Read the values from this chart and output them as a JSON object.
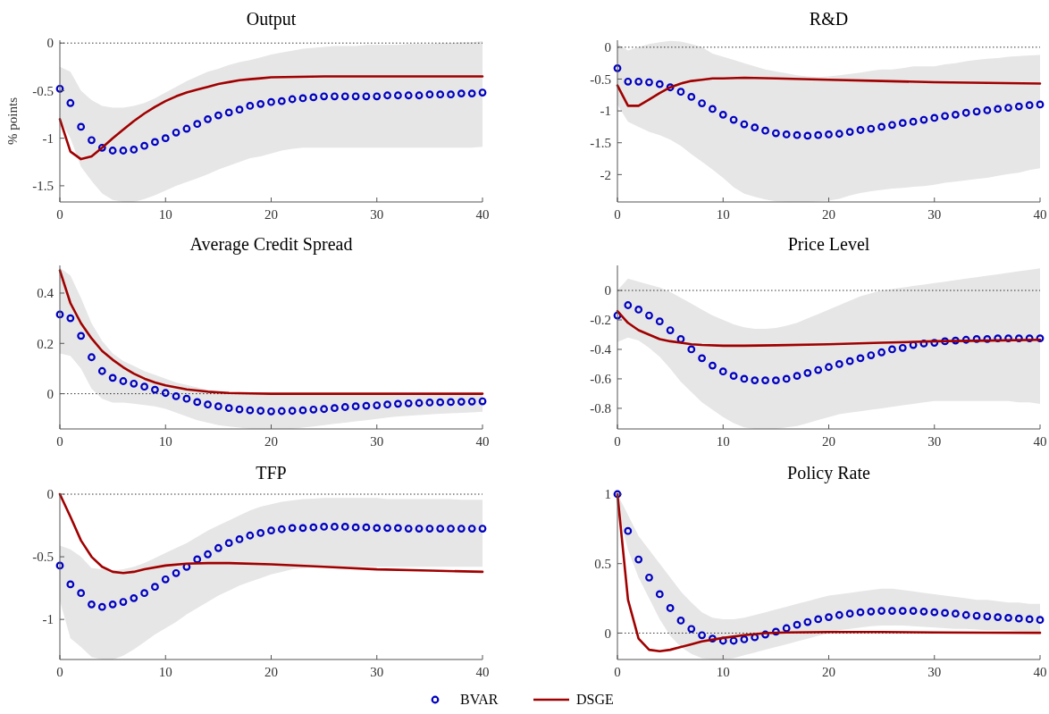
{
  "chart_data": [
    {
      "type": "line",
      "title": "Output",
      "ylabel": "% points",
      "legend": "bottom",
      "x": [
        0,
        1,
        2,
        3,
        4,
        5,
        6,
        7,
        8,
        9,
        10,
        11,
        12,
        13,
        14,
        15,
        16,
        17,
        18,
        19,
        20,
        21,
        22,
        23,
        24,
        25,
        26,
        27,
        28,
        29,
        30,
        31,
        32,
        33,
        34,
        35,
        36,
        37,
        38,
        39,
        40
      ],
      "xlim": [
        0,
        40
      ],
      "xticks": [
        0,
        10,
        20,
        30,
        40
      ],
      "ylim": [
        -1.67,
        0.03
      ],
      "yticks": [
        -1.5,
        -1,
        -0.5,
        0
      ],
      "grid": false,
      "ref_lines": [
        {
          "axis": "y",
          "value": 0,
          "color": "#000000",
          "line_style": "dotted"
        }
      ],
      "series": [
        {
          "name": "BVAR",
          "type": "scatter",
          "marker": "circle",
          "color": "#0000c0",
          "values": [
            -0.48,
            -0.63,
            -0.88,
            -1.02,
            -1.1,
            -1.13,
            -1.13,
            -1.12,
            -1.08,
            -1.04,
            -1,
            -0.94,
            -0.9,
            -0.85,
            -0.8,
            -0.76,
            -0.73,
            -0.7,
            -0.66,
            -0.64,
            -0.62,
            -0.61,
            -0.59,
            -0.58,
            -0.57,
            -0.56,
            -0.56,
            -0.56,
            -0.56,
            -0.56,
            -0.56,
            -0.55,
            -0.55,
            -0.55,
            -0.55,
            -0.54,
            -0.54,
            -0.54,
            -0.53,
            -0.53,
            -0.52
          ],
          "lower": [
            -0.8,
            -1,
            -1.3,
            -1.45,
            -1.58,
            -1.65,
            -1.67,
            -1.67,
            -1.64,
            -1.6,
            -1.55,
            -1.5,
            -1.46,
            -1.42,
            -1.38,
            -1.33,
            -1.29,
            -1.25,
            -1.21,
            -1.19,
            -1.16,
            -1.13,
            -1.11,
            -1.1,
            -1.1,
            -1.1,
            -1.1,
            -1.1,
            -1.1,
            -1.1,
            -1.1,
            -1.1,
            -1.1,
            -1.1,
            -1.1,
            -1.1,
            -1.1,
            -1.1,
            -1.1,
            -1.1,
            -1.09
          ],
          "upper": [
            -0.25,
            -0.3,
            -0.5,
            -0.6,
            -0.66,
            -0.68,
            -0.68,
            -0.66,
            -0.63,
            -0.58,
            -0.52,
            -0.46,
            -0.4,
            -0.35,
            -0.3,
            -0.27,
            -0.23,
            -0.2,
            -0.18,
            -0.15,
            -0.12,
            -0.1,
            -0.08,
            -0.06,
            -0.05,
            -0.04,
            -0.03,
            -0.03,
            -0.03,
            -0.02,
            -0.02,
            -0.02,
            -0.02,
            -0.01,
            -0.01,
            -0.01,
            0,
            0,
            0.01,
            0.01,
            0.02
          ]
        },
        {
          "name": "DSGE",
          "type": "line",
          "marker": "none",
          "line_style": "solid",
          "color": "#a00000",
          "x": [
            0,
            1,
            2,
            3,
            4,
            5,
            6,
            7,
            8,
            9,
            10,
            11,
            12,
            13,
            14,
            15,
            16,
            17,
            18,
            19,
            20,
            25,
            30,
            35,
            40
          ],
          "values": [
            -0.8,
            -1.14,
            -1.22,
            -1.19,
            -1.1,
            -1,
            -0.91,
            -0.82,
            -0.74,
            -0.67,
            -0.61,
            -0.56,
            -0.52,
            -0.49,
            -0.46,
            -0.43,
            -0.41,
            -0.39,
            -0.38,
            -0.37,
            -0.36,
            -0.35,
            -0.35,
            -0.35,
            -0.35
          ]
        }
      ]
    },
    {
      "type": "line",
      "title": "R&D",
      "x": [
        0,
        1,
        2,
        3,
        4,
        5,
        6,
        7,
        8,
        9,
        10,
        11,
        12,
        13,
        14,
        15,
        16,
        17,
        18,
        19,
        20,
        21,
        22,
        23,
        24,
        25,
        26,
        27,
        28,
        29,
        30,
        31,
        32,
        33,
        34,
        35,
        36,
        37,
        38,
        39,
        40
      ],
      "xlim": [
        0,
        40
      ],
      "xticks": [
        0,
        10,
        20,
        30,
        40
      ],
      "ylim": [
        -2.43,
        0.11
      ],
      "yticks": [
        -2,
        -1.5,
        -1,
        -0.5,
        0
      ],
      "grid": false,
      "ref_lines": [
        {
          "axis": "y",
          "value": 0,
          "color": "#000000",
          "line_style": "dotted"
        }
      ],
      "series": [
        {
          "type": "scatter",
          "marker": "circle",
          "color": "#0000c0",
          "values": [
            -0.33,
            -0.54,
            -0.54,
            -0.55,
            -0.58,
            -0.63,
            -0.7,
            -0.78,
            -0.88,
            -0.97,
            -1.06,
            -1.14,
            -1.21,
            -1.26,
            -1.31,
            -1.35,
            -1.37,
            -1.38,
            -1.39,
            -1.38,
            -1.37,
            -1.36,
            -1.33,
            -1.3,
            -1.28,
            -1.25,
            -1.22,
            -1.19,
            -1.17,
            -1.14,
            -1.11,
            -1.08,
            -1.06,
            -1.03,
            -1.01,
            -0.99,
            -0.97,
            -0.95,
            -0.93,
            -0.91,
            -0.9
          ],
          "lower": [
            -0.9,
            -1.17,
            -1.25,
            -1.33,
            -1.38,
            -1.45,
            -1.55,
            -1.68,
            -1.8,
            -1.92,
            -2.05,
            -2.2,
            -2.3,
            -2.35,
            -2.39,
            -2.42,
            -2.43,
            -2.43,
            -2.43,
            -2.42,
            -2.41,
            -2.38,
            -2.33,
            -2.29,
            -2.26,
            -2.24,
            -2.22,
            -2.21,
            -2.19,
            -2.18,
            -2.16,
            -2.13,
            -2.11,
            -2.09,
            -2.07,
            -2.05,
            -2.02,
            -1.99,
            -1.97,
            -1.93,
            -1.9
          ],
          "upper": [
            0.05,
            -0.05,
            0,
            0.05,
            0.08,
            0.1,
            0.09,
            0.05,
            0,
            -0.1,
            -0.15,
            -0.2,
            -0.25,
            -0.3,
            -0.35,
            -0.38,
            -0.41,
            -0.44,
            -0.46,
            -0.47,
            -0.46,
            -0.44,
            -0.42,
            -0.4,
            -0.37,
            -0.35,
            -0.35,
            -0.33,
            -0.3,
            -0.3,
            -0.3,
            -0.27,
            -0.25,
            -0.22,
            -0.2,
            -0.18,
            -0.17,
            -0.15,
            -0.14,
            -0.13,
            -0.12
          ]
        },
        {
          "type": "line",
          "marker": "none",
          "line_style": "solid",
          "color": "#a00000",
          "x": [
            0,
            1,
            2,
            3,
            4,
            5,
            6,
            7,
            8,
            9,
            10,
            12,
            15,
            20,
            25,
            30,
            35,
            40
          ],
          "values": [
            -0.6,
            -0.92,
            -0.92,
            -0.82,
            -0.72,
            -0.63,
            -0.57,
            -0.53,
            -0.51,
            -0.49,
            -0.49,
            -0.48,
            -0.49,
            -0.51,
            -0.53,
            -0.55,
            -0.56,
            -0.57
          ]
        }
      ]
    },
    {
      "type": "line",
      "title": "Average Credit Spread",
      "x": [
        0,
        1,
        2,
        3,
        4,
        5,
        6,
        7,
        8,
        9,
        10,
        11,
        12,
        13,
        14,
        15,
        16,
        17,
        18,
        19,
        20,
        21,
        22,
        23,
        24,
        25,
        26,
        27,
        28,
        29,
        30,
        31,
        32,
        33,
        34,
        35,
        36,
        37,
        38,
        39,
        40
      ],
      "xlim": [
        0,
        40
      ],
      "xticks": [
        0,
        10,
        20,
        30,
        40
      ],
      "ylim": [
        -0.14,
        0.51
      ],
      "yticks": [
        0,
        0.2,
        0.4
      ],
      "grid": false,
      "ref_lines": [
        {
          "axis": "y",
          "value": 0,
          "color": "#000000",
          "line_style": "dotted"
        }
      ],
      "series": [
        {
          "type": "scatter",
          "marker": "circle",
          "color": "#0000c0",
          "values": [
            0.315,
            0.3,
            0.23,
            0.145,
            0.09,
            0.063,
            0.05,
            0.04,
            0.028,
            0.016,
            0.003,
            -0.01,
            -0.02,
            -0.033,
            -0.043,
            -0.05,
            -0.057,
            -0.062,
            -0.066,
            -0.068,
            -0.07,
            -0.069,
            -0.068,
            -0.066,
            -0.063,
            -0.061,
            -0.057,
            -0.053,
            -0.05,
            -0.048,
            -0.046,
            -0.043,
            -0.04,
            -0.038,
            -0.037,
            -0.035,
            -0.034,
            -0.033,
            -0.032,
            -0.031,
            -0.03
          ],
          "lower": [
            0.16,
            0.15,
            0.1,
            0.02,
            -0.02,
            -0.035,
            -0.035,
            -0.04,
            -0.045,
            -0.05,
            -0.06,
            -0.075,
            -0.09,
            -0.105,
            -0.115,
            -0.125,
            -0.13,
            -0.135,
            -0.14,
            -0.14,
            -0.14,
            -0.14,
            -0.14,
            -0.135,
            -0.13,
            -0.125,
            -0.12,
            -0.115,
            -0.11,
            -0.105,
            -0.1,
            -0.095,
            -0.09,
            -0.088,
            -0.085,
            -0.082,
            -0.08,
            -0.078,
            -0.076,
            -0.074,
            -0.072
          ],
          "upper": [
            0.5,
            0.47,
            0.38,
            0.28,
            0.21,
            0.16,
            0.13,
            0.11,
            0.09,
            0.075,
            0.06,
            0.045,
            0.035,
            0.025,
            0.015,
            0.008,
            0.005,
            0.003,
            0.001,
            0,
            0,
            0,
            0,
            0,
            0,
            0,
            0,
            0,
            0,
            0,
            0,
            0,
            0,
            0,
            0,
            0,
            0,
            0,
            0,
            0,
            0
          ]
        },
        {
          "type": "line",
          "marker": "none",
          "line_style": "solid",
          "color": "#a00000",
          "x": [
            0,
            1,
            2,
            3,
            4,
            5,
            6,
            7,
            8,
            9,
            10,
            12,
            14,
            16,
            18,
            20,
            25,
            30,
            40
          ],
          "values": [
            0.49,
            0.36,
            0.28,
            0.22,
            0.17,
            0.135,
            0.105,
            0.08,
            0.06,
            0.045,
            0.033,
            0.017,
            0.008,
            0.003,
            0.001,
            0,
            0,
            0,
            0
          ]
        }
      ]
    },
    {
      "type": "line",
      "title": "Price Level",
      "x": [
        0,
        1,
        2,
        3,
        4,
        5,
        6,
        7,
        8,
        9,
        10,
        11,
        12,
        13,
        14,
        15,
        16,
        17,
        18,
        19,
        20,
        21,
        22,
        23,
        24,
        25,
        26,
        27,
        28,
        29,
        30,
        31,
        32,
        33,
        34,
        35,
        36,
        37,
        38,
        39,
        40
      ],
      "xlim": [
        0,
        40
      ],
      "xticks": [
        0,
        10,
        20,
        30,
        40
      ],
      "ylim": [
        -0.94,
        0.17
      ],
      "yticks": [
        -0.8,
        -0.6,
        -0.4,
        -0.2,
        0
      ],
      "grid": false,
      "ref_lines": [
        {
          "axis": "y",
          "value": 0,
          "color": "#000000",
          "line_style": "dotted"
        }
      ],
      "series": [
        {
          "type": "scatter",
          "marker": "circle",
          "color": "#0000c0",
          "values": [
            -0.17,
            -0.1,
            -0.13,
            -0.17,
            -0.21,
            -0.27,
            -0.33,
            -0.4,
            -0.46,
            -0.51,
            -0.55,
            -0.58,
            -0.6,
            -0.61,
            -0.61,
            -0.61,
            -0.6,
            -0.58,
            -0.56,
            -0.54,
            -0.52,
            -0.5,
            -0.48,
            -0.46,
            -0.44,
            -0.42,
            -0.4,
            -0.39,
            -0.37,
            -0.36,
            -0.355,
            -0.345,
            -0.34,
            -0.335,
            -0.33,
            -0.33,
            -0.325,
            -0.325,
            -0.325,
            -0.325,
            -0.325
          ],
          "lower": [
            -0.35,
            -0.32,
            -0.34,
            -0.39,
            -0.45,
            -0.53,
            -0.62,
            -0.69,
            -0.76,
            -0.81,
            -0.86,
            -0.9,
            -0.93,
            -0.94,
            -0.94,
            -0.94,
            -0.93,
            -0.92,
            -0.9,
            -0.88,
            -0.86,
            -0.84,
            -0.83,
            -0.82,
            -0.81,
            -0.8,
            -0.79,
            -0.78,
            -0.77,
            -0.76,
            -0.75,
            -0.75,
            -0.75,
            -0.75,
            -0.75,
            -0.75,
            -0.75,
            -0.75,
            -0.76,
            -0.76,
            -0.77
          ],
          "upper": [
            0,
            0.08,
            0.06,
            0.04,
            0.02,
            -0.01,
            -0.05,
            -0.09,
            -0.13,
            -0.17,
            -0.2,
            -0.23,
            -0.25,
            -0.26,
            -0.26,
            -0.255,
            -0.24,
            -0.22,
            -0.19,
            -0.16,
            -0.13,
            -0.1,
            -0.07,
            -0.04,
            -0.02,
            0,
            0.01,
            0.02,
            0.03,
            0.04,
            0.05,
            0.06,
            0.07,
            0.08,
            0.09,
            0.1,
            0.11,
            0.12,
            0.13,
            0.14,
            0.15
          ]
        },
        {
          "type": "line",
          "marker": "none",
          "line_style": "solid",
          "color": "#a00000",
          "x": [
            0,
            1,
            2,
            3,
            4,
            5,
            6,
            7,
            8,
            10,
            12,
            15,
            20,
            25,
            30,
            35,
            40
          ],
          "values": [
            -0.14,
            -0.22,
            -0.27,
            -0.3,
            -0.33,
            -0.345,
            -0.355,
            -0.365,
            -0.37,
            -0.375,
            -0.375,
            -0.372,
            -0.365,
            -0.355,
            -0.345,
            -0.34,
            -0.335
          ]
        }
      ]
    },
    {
      "type": "line",
      "title": "TFP",
      "x": [
        0,
        1,
        2,
        3,
        4,
        5,
        6,
        7,
        8,
        9,
        10,
        11,
        12,
        13,
        14,
        15,
        16,
        17,
        18,
        19,
        20,
        21,
        22,
        23,
        24,
        25,
        26,
        27,
        28,
        29,
        30,
        31,
        32,
        33,
        34,
        35,
        36,
        37,
        38,
        39,
        40
      ],
      "xlim": [
        0,
        40
      ],
      "xticks": [
        0,
        10,
        20,
        30,
        40
      ],
      "ylim": [
        -1.32,
        0
      ],
      "yticks": [
        -1,
        -0.5,
        0
      ],
      "grid": false,
      "ref_lines": [
        {
          "axis": "y",
          "value": 0,
          "color": "#000000",
          "line_style": "dotted"
        }
      ],
      "series": [
        {
          "type": "scatter",
          "marker": "circle",
          "color": "#0000c0",
          "values": [
            -0.57,
            -0.72,
            -0.79,
            -0.88,
            -0.9,
            -0.88,
            -0.86,
            -0.83,
            -0.79,
            -0.74,
            -0.68,
            -0.63,
            -0.58,
            -0.52,
            -0.48,
            -0.43,
            -0.39,
            -0.36,
            -0.33,
            -0.31,
            -0.29,
            -0.28,
            -0.27,
            -0.27,
            -0.265,
            -0.26,
            -0.26,
            -0.26,
            -0.265,
            -0.265,
            -0.27,
            -0.27,
            -0.27,
            -0.275,
            -0.275,
            -0.275,
            -0.275,
            -0.275,
            -0.275,
            -0.275,
            -0.275
          ],
          "lower": [
            -0.85,
            -1.15,
            -1.22,
            -1.3,
            -1.32,
            -1.32,
            -1.29,
            -1.24,
            -1.18,
            -1.12,
            -1.07,
            -1.02,
            -0.96,
            -0.91,
            -0.86,
            -0.81,
            -0.77,
            -0.73,
            -0.7,
            -0.67,
            -0.64,
            -0.62,
            -0.6,
            -0.59,
            -0.58,
            -0.58,
            -0.58,
            -0.58,
            -0.58,
            -0.58,
            -0.58,
            -0.58,
            -0.58,
            -0.58,
            -0.58,
            -0.58,
            -0.58,
            -0.58,
            -0.58,
            -0.58,
            -0.58
          ],
          "upper": [
            -0.41,
            -0.44,
            -0.5,
            -0.59,
            -0.6,
            -0.61,
            -0.6,
            -0.58,
            -0.55,
            -0.51,
            -0.47,
            -0.43,
            -0.39,
            -0.34,
            -0.29,
            -0.25,
            -0.21,
            -0.17,
            -0.13,
            -0.1,
            -0.08,
            -0.06,
            -0.05,
            -0.04,
            -0.035,
            -0.03,
            -0.03,
            -0.03,
            -0.03,
            -0.03,
            -0.03,
            -0.04,
            -0.04,
            -0.04,
            -0.04,
            -0.04,
            -0.04,
            -0.04,
            -0.045,
            -0.045,
            -0.045
          ]
        },
        {
          "type": "line",
          "marker": "none",
          "line_style": "solid",
          "color": "#a00000",
          "x": [
            0,
            1,
            2,
            3,
            4,
            5,
            6,
            7,
            8,
            10,
            12,
            14,
            16,
            20,
            25,
            30,
            35,
            40
          ],
          "values": [
            0,
            -0.18,
            -0.37,
            -0.5,
            -0.58,
            -0.62,
            -0.63,
            -0.62,
            -0.6,
            -0.57,
            -0.555,
            -0.55,
            -0.55,
            -0.56,
            -0.58,
            -0.6,
            -0.61,
            -0.62
          ]
        }
      ]
    },
    {
      "type": "line",
      "title": "Policy Rate",
      "x": [
        0,
        1,
        2,
        3,
        4,
        5,
        6,
        7,
        8,
        9,
        10,
        11,
        12,
        13,
        14,
        15,
        16,
        17,
        18,
        19,
        20,
        21,
        22,
        23,
        24,
        25,
        26,
        27,
        28,
        29,
        30,
        31,
        32,
        33,
        34,
        35,
        36,
        37,
        38,
        39,
        40
      ],
      "xlim": [
        0,
        40
      ],
      "xticks": [
        0,
        10,
        20,
        30,
        40
      ],
      "ylim": [
        -0.19,
        1
      ],
      "yticks": [
        0,
        0.5,
        1
      ],
      "grid": false,
      "ref_lines": [
        {
          "axis": "y",
          "value": 0,
          "color": "#000000",
          "line_style": "dotted"
        }
      ],
      "series": [
        {
          "type": "scatter",
          "marker": "circle",
          "color": "#0000c0",
          "values": [
            1,
            0.735,
            0.53,
            0.4,
            0.28,
            0.18,
            0.09,
            0.03,
            -0.015,
            -0.04,
            -0.055,
            -0.055,
            -0.045,
            -0.03,
            -0.01,
            0.01,
            0.035,
            0.06,
            0.08,
            0.1,
            0.115,
            0.13,
            0.14,
            0.15,
            0.155,
            0.16,
            0.16,
            0.16,
            0.16,
            0.155,
            0.15,
            0.145,
            0.14,
            0.13,
            0.125,
            0.12,
            0.115,
            0.11,
            0.105,
            0.1,
            0.095
          ],
          "lower": [
            0.9,
            0.6,
            0.4,
            0.25,
            0.1,
            -0.02,
            -0.1,
            -0.15,
            -0.18,
            -0.19,
            -0.19,
            -0.18,
            -0.16,
            -0.14,
            -0.12,
            -0.1,
            -0.08,
            -0.06,
            -0.04,
            -0.02,
            0,
            0.02,
            0.03,
            0.04,
            0.05,
            0.055,
            0.055,
            0.055,
            0.05,
            0.045,
            0.04,
            0.035,
            0.03,
            0.03,
            0.025,
            0.02,
            0.02,
            0.02,
            0.015,
            0.015,
            0.015
          ],
          "upper": [
            1,
            0.85,
            0.7,
            0.6,
            0.5,
            0.4,
            0.3,
            0.22,
            0.15,
            0.11,
            0.1,
            0.1,
            0.11,
            0.13,
            0.15,
            0.17,
            0.19,
            0.21,
            0.23,
            0.25,
            0.27,
            0.28,
            0.29,
            0.3,
            0.31,
            0.32,
            0.32,
            0.31,
            0.3,
            0.29,
            0.28,
            0.27,
            0.26,
            0.25,
            0.24,
            0.24,
            0.23,
            0.22,
            0.22,
            0.21,
            0.21
          ]
        },
        {
          "type": "line",
          "marker": "none",
          "line_style": "solid",
          "color": "#a00000",
          "x": [
            0,
            1,
            2,
            3,
            4,
            5,
            6,
            7,
            8,
            10,
            12,
            14,
            16,
            20,
            25,
            30,
            35,
            40
          ],
          "values": [
            1,
            0.24,
            -0.04,
            -0.12,
            -0.13,
            -0.12,
            -0.1,
            -0.08,
            -0.06,
            -0.035,
            -0.015,
            0,
            0.005,
            0.008,
            0.008,
            0.005,
            0.003,
            0.002
          ]
        }
      ]
    }
  ]
}
